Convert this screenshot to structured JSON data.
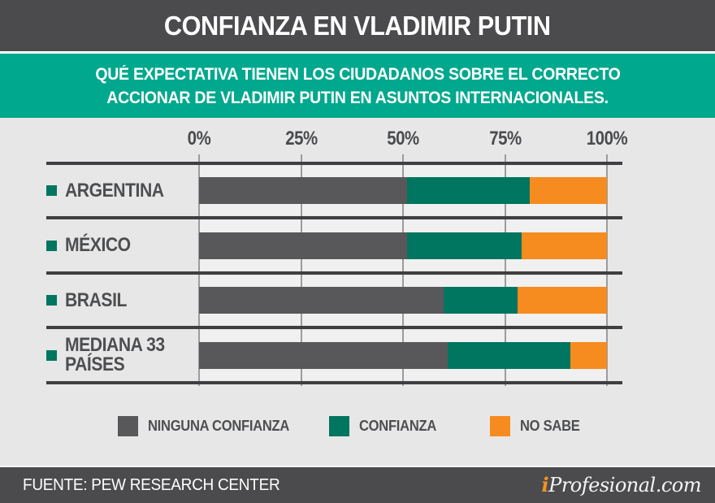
{
  "header": {
    "title": "CONFIANZA EN VLADIMIR PUTIN"
  },
  "subtitle": {
    "line1": "QUÉ EXPECTATIVA TIENEN LOS CIUDADANOS SOBRE EL CORRECTO",
    "line2": "ACCIONAR DE VLADIMIR PUTIN EN ASUNTOS INTERNACIONALES."
  },
  "chart_data": {
    "type": "bar",
    "orientation": "horizontal",
    "stacked": true,
    "title": "CONFIANZA EN VLADIMIR PUTIN",
    "categories": [
      "ARGENTINA",
      "MÉXICO",
      "BRASIL",
      "MEDIANA 33 PAÍSES"
    ],
    "series": [
      {
        "name": "NINGUNA CONFIANZA",
        "color": "#58585a",
        "values": [
          51,
          51,
          60,
          61
        ]
      },
      {
        "name": "CONFIANZA",
        "color": "#00755f",
        "values": [
          30,
          28,
          18,
          30
        ]
      },
      {
        "name": "NO SABE",
        "color": "#f68b1f",
        "values": [
          19,
          21,
          22,
          9
        ]
      }
    ],
    "x_ticks": [
      "0%",
      "25%",
      "50%",
      "75%",
      "100%"
    ],
    "xlim": [
      0,
      100
    ],
    "grid": true,
    "legend_position": "bottom"
  },
  "footer": {
    "source": "FUENTE: PEW RESEARCH CENTER",
    "brand_prefix": "i",
    "brand_rest": "Profesional.com"
  },
  "colors": {
    "header_bg": "#4b4b4d",
    "band_bg": "#00a88d",
    "chart_bg": "#e7e7e8",
    "row_bg": "#f0f0f1",
    "separator": "#3f3f41",
    "gridline": "#9c9c9e",
    "text_dark": "#4d4e50",
    "bullet": "#00755f",
    "brand_orange": "#f6921e",
    "white": "#ffffff"
  }
}
